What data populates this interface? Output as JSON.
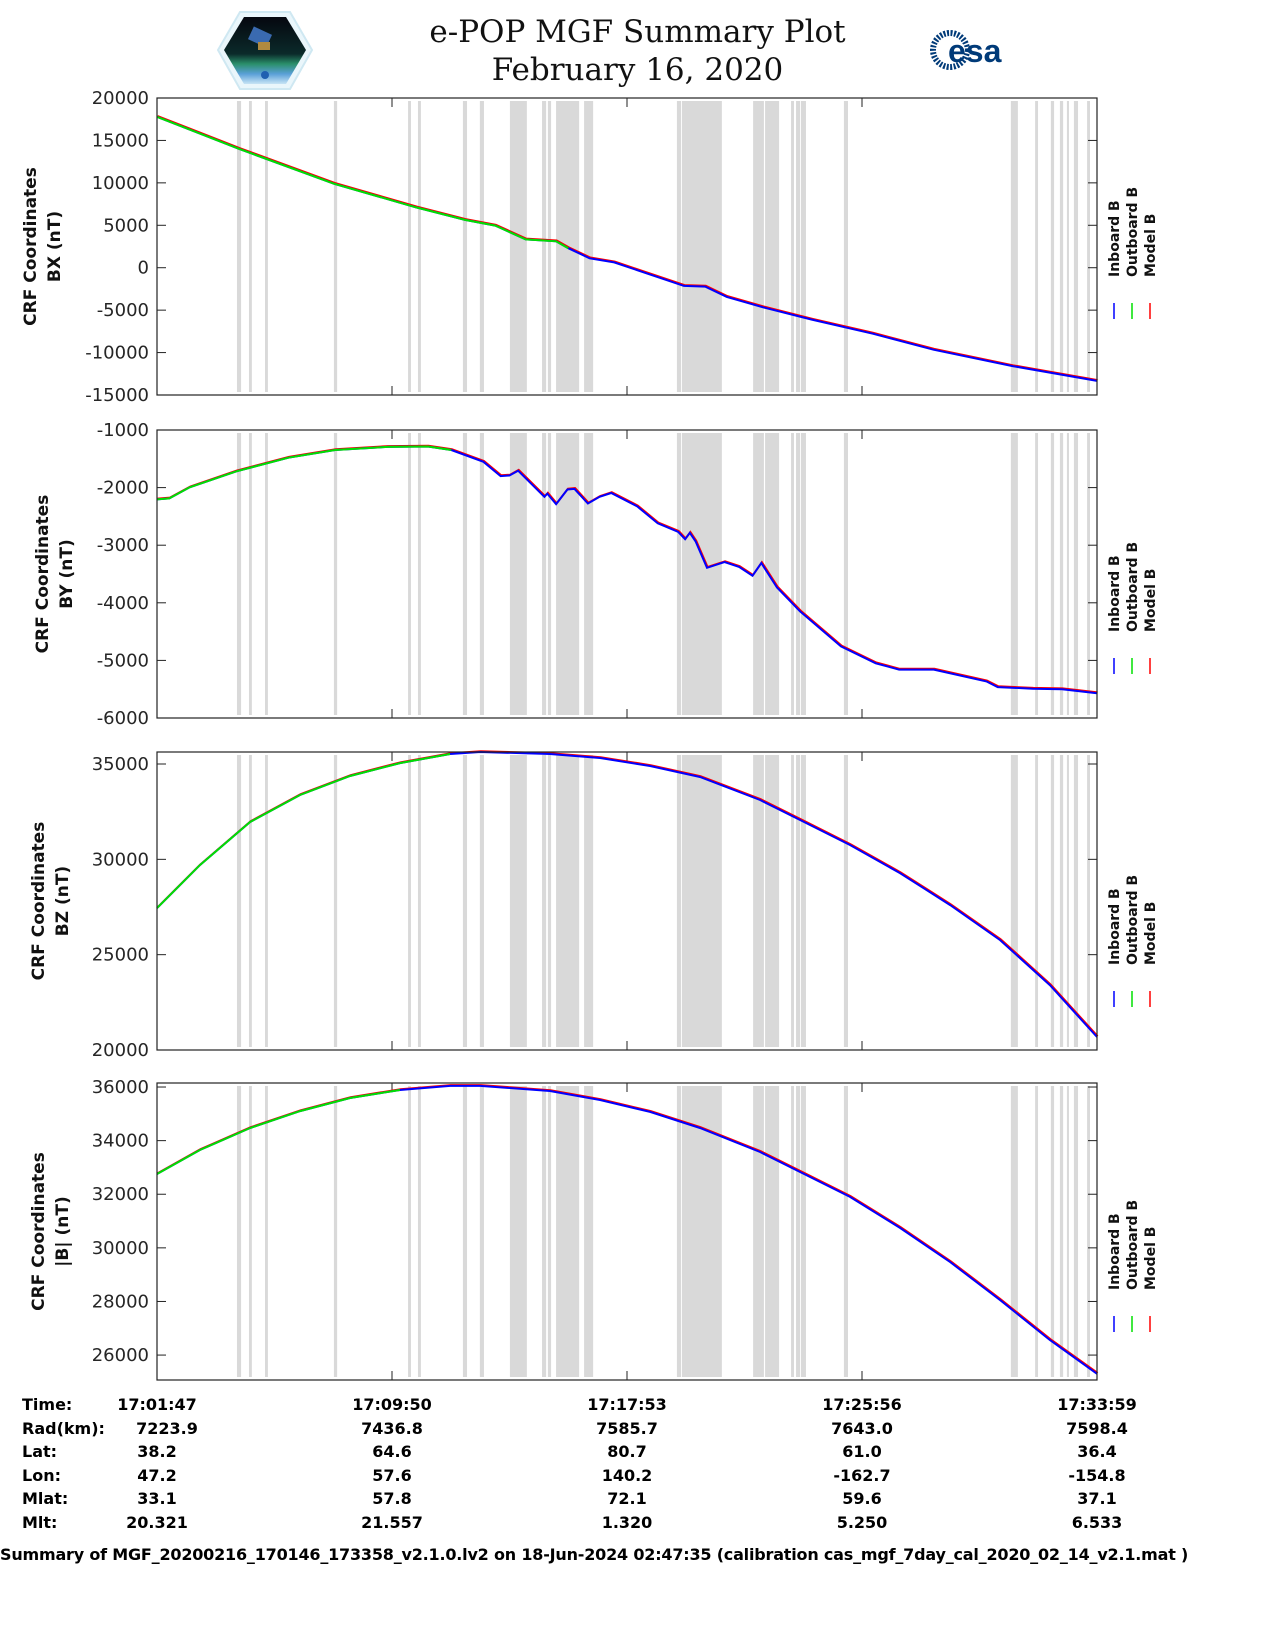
{
  "header": {
    "title": "e-POP MGF Summary Plot",
    "date": "February 16, 2020",
    "left_logo": "CASSIOPE",
    "right_logo": "esa"
  },
  "colors": {
    "inboard": "#0000ff",
    "outboard": "#00e000",
    "model": "#ff0000",
    "band": "#d9d9d9"
  },
  "legend": [
    "Inboard B",
    "Outboard B",
    "Model B"
  ],
  "chart_data": {
    "type": "line",
    "x_unit": "minutes after 17:01:47",
    "xlim": [
      0,
      32.2
    ],
    "x_ticks": [
      0,
      8.05,
      16.1,
      24.15,
      32.2
    ],
    "gray_bands": [
      [
        2.74,
        2.88
      ],
      [
        3.15,
        3.25
      ],
      [
        3.7,
        3.8
      ],
      [
        6.06,
        6.17
      ],
      [
        8.6,
        8.7
      ],
      [
        8.94,
        9.04
      ],
      [
        10.48,
        10.62
      ],
      [
        11.06,
        11.2
      ],
      [
        12.09,
        12.67
      ],
      [
        13.19,
        13.33
      ],
      [
        13.39,
        13.5
      ],
      [
        13.67,
        14.46
      ],
      [
        14.63,
        14.94
      ],
      [
        17.81,
        17.95
      ],
      [
        17.98,
        19.35
      ],
      [
        20.42,
        20.79
      ],
      [
        20.83,
        21.31
      ],
      [
        21.72,
        21.82
      ],
      [
        21.89,
        22.03
      ],
      [
        22.06,
        22.23
      ],
      [
        23.53,
        23.67
      ],
      [
        29.25,
        29.49
      ],
      [
        30.08,
        30.18
      ],
      [
        30.62,
        30.73
      ],
      [
        30.93,
        31.04
      ],
      [
        31.17,
        31.24
      ],
      [
        31.41,
        31.55
      ],
      [
        31.86,
        31.96
      ]
    ],
    "panels": [
      {
        "ylabel": [
          "CRF Coordinates",
          "BX (nT)"
        ],
        "ylim": [
          -15000,
          20000
        ],
        "yticks": [
          20000,
          15000,
          10000,
          5000,
          0,
          -5000,
          -10000,
          -15000
        ],
        "ytick_labels": [
          "20000",
          "15000",
          "10000",
          "5000",
          "0",
          "-5000",
          "-10000",
          "-15000"
        ],
        "outboard_until": 14.1,
        "x": [
          0,
          2.84,
          6.07,
          8.88,
          10.55,
          11.59,
          12.63,
          13.67,
          14.09,
          14.82,
          15.66,
          18.05,
          18.78,
          19.52,
          20.76,
          22.43,
          24.52,
          26.6,
          29.31,
          32.2
        ],
        "y": [
          17780,
          13963,
          9889,
          7110,
          5630,
          4963,
          3333,
          3111,
          2296,
          1111,
          630,
          -2148,
          -2222,
          -3444,
          -4667,
          -6111,
          -7778,
          -9667,
          -11593,
          -13333
        ]
      },
      {
        "ylabel": [
          "CRF Coordinates",
          "BY (nT)"
        ],
        "ylim": [
          -6000,
          -1000
        ],
        "yticks": [
          -1000,
          -2000,
          -3000,
          -4000,
          -5000,
          -6000
        ],
        "ytick_labels": [
          "-1000",
          "-2000",
          "-3000",
          "-4000",
          "-5000",
          "-6000"
        ],
        "outboard_until": 10.5,
        "x": [
          0,
          0.42,
          1.12,
          2.71,
          4.5,
          6.1,
          7.89,
          9.28,
          10.08,
          11.18,
          11.77,
          12.07,
          12.37,
          13.27,
          13.37,
          13.67,
          14.06,
          14.3,
          14.76,
          15.16,
          15.56,
          16.45,
          17.15,
          17.85,
          18.09,
          18.25,
          18.45,
          18.84,
          19.44,
          19.94,
          20.4,
          20.7,
          21.24,
          22.03,
          23.43,
          24.62,
          25.42,
          26.61,
          28.41,
          28.8,
          30.0,
          31.0,
          32.2
        ],
        "y": [
          -2204,
          -2188,
          -1994,
          -1718,
          -1481,
          -1348,
          -1293,
          -1287,
          -1348,
          -1552,
          -1801,
          -1790,
          -1707,
          -2160,
          -2105,
          -2287,
          -2033,
          -2022,
          -2276,
          -2160,
          -2094,
          -2326,
          -2619,
          -2768,
          -2895,
          -2785,
          -2934,
          -3392,
          -3293,
          -3376,
          -3530,
          -3309,
          -3735,
          -4149,
          -4757,
          -5050,
          -5160,
          -5160,
          -5365,
          -5464,
          -5492,
          -5500,
          -5570
        ]
      },
      {
        "ylabel": [
          "CRF Coordinates",
          "BZ (nT)"
        ],
        "ylim": [
          20000,
          35630
        ],
        "yticks": [
          35000,
          30000,
          25000,
          20000
        ],
        "ytick_labels": [
          "35000",
          "30000",
          "25000",
          "20000"
        ],
        "outboard_until": 11.0,
        "x": [
          0,
          1.47,
          3.19,
          4.9,
          6.61,
          8.32,
          10.04,
          11.07,
          13.46,
          15.18,
          16.89,
          18.6,
          20.66,
          22.03,
          23.74,
          25.45,
          27.17,
          28.88,
          30.59,
          32.2
        ],
        "y": [
          27445,
          29700,
          31957,
          33374,
          34370,
          35050,
          35525,
          35630,
          35525,
          35315,
          34895,
          34318,
          33111,
          32062,
          30750,
          29280,
          27600,
          25765,
          23400,
          20680
        ]
      },
      {
        "ylabel": [
          "CRF Coordinates",
          "|B| (nT)"
        ],
        "ylim": [
          25070,
          36150
        ],
        "yticks": [
          36000,
          34000,
          32000,
          30000,
          28000,
          26000
        ],
        "ytick_labels": [
          "36000",
          "34000",
          "32000",
          "30000",
          "28000",
          "26000"
        ],
        "outboard_until": 9.5,
        "x": [
          0,
          1.47,
          3.19,
          4.9,
          6.61,
          8.32,
          10.04,
          11.07,
          13.46,
          15.18,
          16.89,
          18.6,
          20.66,
          22.03,
          23.74,
          25.45,
          27.17,
          28.88,
          30.59,
          32.2
        ],
        "y": [
          32754,
          33650,
          34470,
          35100,
          35590,
          35890,
          36040,
          36040,
          35850,
          35515,
          35070,
          34470,
          33575,
          32830,
          31900,
          30745,
          29470,
          28050,
          26560,
          25300
        ]
      }
    ]
  },
  "table": {
    "rows": [
      {
        "label": "Time:",
        "values": [
          "17:01:47",
          "17:09:50",
          "17:17:53",
          "17:25:56",
          "17:33:59"
        ]
      },
      {
        "label": "Rad(km):",
        "values": [
          "7223.9",
          "7436.8",
          "7585.7",
          "7643.0",
          "7598.4"
        ]
      },
      {
        "label": "Lat:",
        "values": [
          "38.2",
          "64.6",
          "80.7",
          "61.0",
          "36.4"
        ]
      },
      {
        "label": "Lon:",
        "values": [
          "47.2",
          "57.6",
          "140.2",
          "-162.7",
          "-154.8"
        ]
      },
      {
        "label": "Mlat:",
        "values": [
          "33.1",
          "57.8",
          "72.1",
          "59.6",
          "37.1"
        ]
      },
      {
        "label": "Mlt:",
        "values": [
          "20.321",
          "21.557",
          "1.320",
          "5.250",
          "6.533"
        ]
      }
    ]
  },
  "footer": "Summary of MGF_20200216_170146_173358_v2.1.0.lv2 on 18-Jun-2024 02:47:35 (calibration cas_mgf_7day_cal_2020_02_14_v2.1.mat )"
}
